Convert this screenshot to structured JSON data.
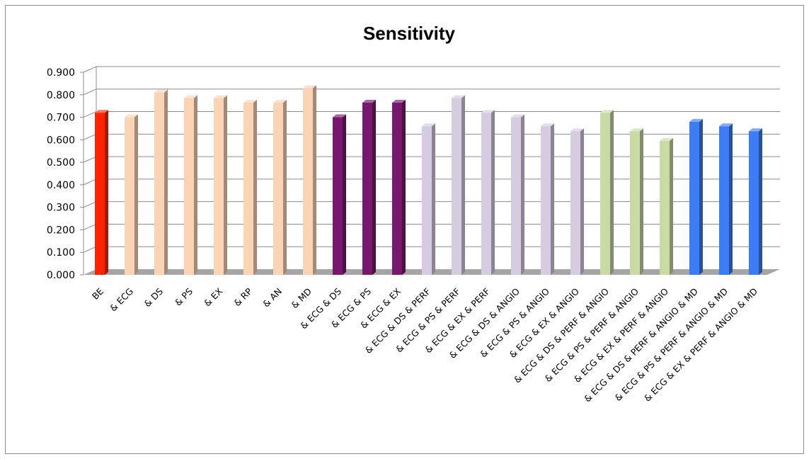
{
  "chart_data": {
    "type": "bar",
    "title": "Sensitivity",
    "xlabel": "",
    "ylabel": "",
    "ylim": [
      0,
      0.9
    ],
    "ytick_step": 0.1,
    "ytick_labels": [
      "0.000",
      "0.100",
      "0.200",
      "0.300",
      "0.400",
      "0.500",
      "0.600",
      "0.700",
      "0.800",
      "0.900"
    ],
    "grid": true,
    "legend": "none",
    "style": "3d-column",
    "categories": [
      "BE",
      "& ECG",
      "& DS",
      "& PS",
      "& EX",
      "& RP",
      "& AN",
      "& MD",
      "& ECG & DS",
      "& ECG & PS",
      "& ECG & EX",
      "& ECG & DS & PERF",
      "& ECG & PS & PERF",
      "& ECG & EX & PERF",
      "& ECG & DS & ANGIO",
      "& ECG & PS & ANGIO",
      "& ECG & EX & ANGIO",
      "& ECG & DS & PERF & ANGIO",
      "& ECG & PS & PERF & ANGIO",
      "& ECG & EX & PERF & ANGIO",
      "& ECG & DS & PERF & ANGIO & MD",
      "& ECG & PS & PERF & ANGIO & MD",
      "& ECG & EX & PERF & ANGIO & MD"
    ],
    "values": [
      0.72,
      0.7,
      0.81,
      0.785,
      0.785,
      0.765,
      0.765,
      0.83,
      0.7,
      0.765,
      0.765,
      0.66,
      0.785,
      0.72,
      0.7,
      0.66,
      0.638,
      0.72,
      0.638,
      0.595,
      0.68,
      0.66,
      0.638
    ],
    "bar_colors": [
      "#ff2200",
      "#fbd3b5",
      "#fbd3b5",
      "#fbd3b5",
      "#fbd3b5",
      "#fbd3b5",
      "#fbd3b5",
      "#fbd3b5",
      "#76186d",
      "#76186d",
      "#76186d",
      "#d6cce2",
      "#d6cce2",
      "#d6cce2",
      "#d6cce2",
      "#d6cce2",
      "#d6cce2",
      "#c8dba5",
      "#c8dba5",
      "#c8dba5",
      "#3c7df5",
      "#3c7df5",
      "#3c7df5"
    ]
  }
}
